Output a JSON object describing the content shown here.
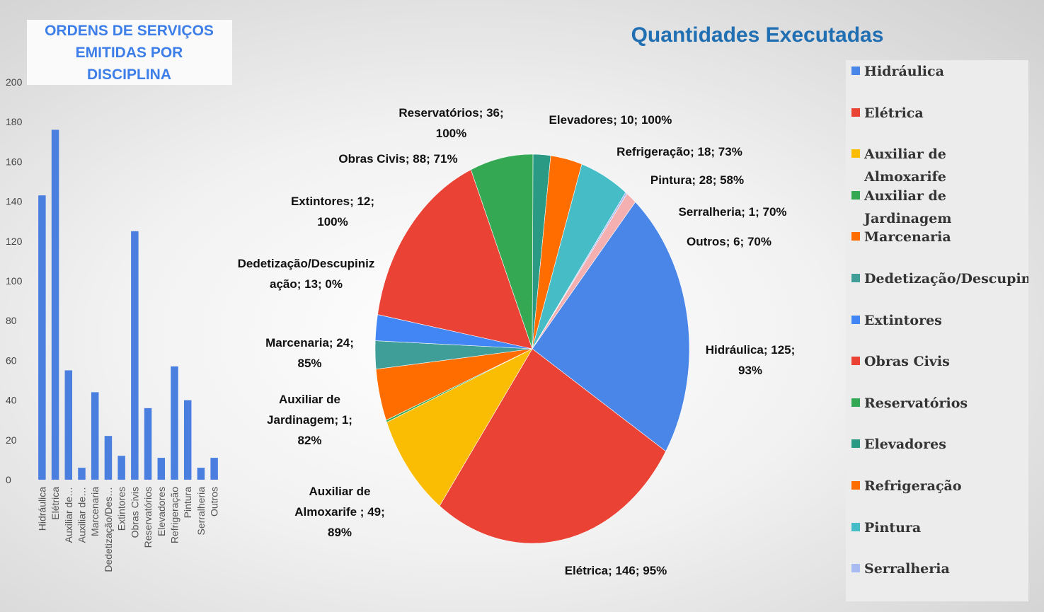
{
  "chart_data": [
    {
      "type": "bar",
      "title": "ORDENS DE SERVIÇOS EMITIDAS POR DISCIPLINA",
      "categories": [
        "Hidráulica",
        "Elétrica",
        "Auxiliar de…",
        "Auxiliar de…",
        "Marcenaria",
        "Dedetização/Des…",
        "Extintores",
        "Obras Civis",
        "Reservatórios",
        "Elevadores",
        "Refrigeração",
        "Pintura",
        "Serralheria",
        "Outros"
      ],
      "values": [
        143,
        176,
        55,
        6,
        44,
        22,
        12,
        125,
        36,
        11,
        57,
        40,
        6,
        11
      ],
      "color": "#4a7fe0",
      "ylim": [
        0,
        200
      ],
      "yticks": [
        0,
        20,
        40,
        60,
        80,
        100,
        120,
        140,
        160,
        180,
        200
      ],
      "grid": false
    },
    {
      "type": "pie",
      "title": "Quantidades Executadas",
      "categories": [
        "Hidráulica",
        "Elétrica",
        "Auxiliar de Almoxarife",
        "Auxiliar de Jardinagem",
        "Marcenaria",
        "Dedetização/Descupinização",
        "Extintores",
        "Obras Civis",
        "Reservatórios",
        "Elevadores",
        "Refrigeração",
        "Pintura",
        "Serralheria",
        "Outros"
      ],
      "values": [
        125,
        146,
        49,
        1,
        24,
        13,
        12,
        88,
        36,
        10,
        18,
        28,
        1,
        6
      ],
      "value_labels": [
        "Hidráulica; 125; 93%",
        "Elétrica; 146; 95%",
        "Auxiliar de Almoxarife ; 49; 89%",
        "Auxiliar de Jardinagem; 1; 82%",
        "Marcenaria; 24; 85%",
        "Dedetização/Descupinização; 13; 0%",
        "Extintores; 12; 100%",
        "Obras Civis; 88; 71%",
        "Reservatórios; 36; 100%",
        "Elevadores; 10; 100%",
        "Refrigeração; 18; 73%",
        "Pintura; 28; 58%",
        "Serralheria; 1; 70%",
        "Outros; 6; 70%"
      ],
      "colors": [
        "#4a86e8",
        "#ea4335",
        "#fbbc04",
        "#34a853",
        "#ff6d01",
        "#3f9e98",
        "#4285f4",
        "#ea4335",
        "#34a853",
        "#2a9a85",
        "#ff6d01",
        "#46bdc6",
        "#a9bcf2",
        "#f4b0b0"
      ],
      "legend": "right"
    }
  ]
}
